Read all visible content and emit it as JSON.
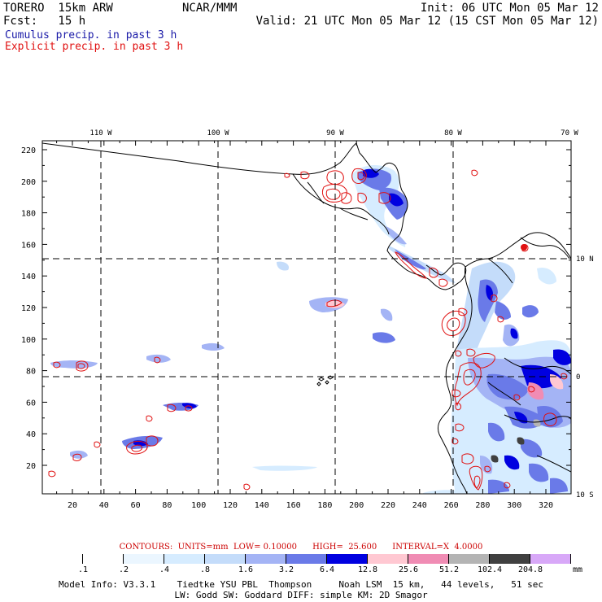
{
  "header": {
    "left_line1": "TORERO  15km ARW",
    "center_line1": "NCAR/MMM",
    "right_line1": "Init: 06 UTC Mon 05 Mar 12",
    "left_line2": "Fcst:   15 h",
    "right_line2": "Valid: 21 UTC Mon 05 Mar 12 (15 CST Mon 05 Mar 12)",
    "legend_blue": "Cumulus precip. in past 3 h",
    "legend_red": "Explicit precip. in past 3 h"
  },
  "map": {
    "top_lon_labels": [
      "110 W",
      "100 W",
      "90 W",
      "80 W",
      "70 W"
    ],
    "right_lat_labels": [
      "10 N",
      "0",
      "10 S"
    ],
    "y_ticks": [
      "20",
      "40",
      "60",
      "80",
      "100",
      "120",
      "140",
      "160",
      "180",
      "200",
      "220"
    ],
    "x_ticks": [
      "20",
      "40",
      "60",
      "80",
      "100",
      "120",
      "140",
      "160",
      "180",
      "200",
      "220",
      "240",
      "260",
      "280",
      "300",
      "320"
    ],
    "colors": {
      "cumulus": "#1a1aa8",
      "explicit": "#e01010",
      "coast": "#000000"
    }
  },
  "contours": {
    "label": "CONTOURS:  UNITS=mm  LOW= 0.10000      HIGH=  25.600      INTERVAL=X  4.0000"
  },
  "colorbar": {
    "labels": [
      ".1",
      ".2",
      ".4",
      ".8",
      "1.6",
      "3.2",
      "6.4",
      "12.8",
      "25.6",
      "51.2",
      "102.4",
      "204.8"
    ],
    "unit": "mm",
    "colors": [
      "#ffffff",
      "#ffffff",
      "#ebf6ff",
      "#d6ecff",
      "#c4dcfa",
      "#a4b4f5",
      "#6a7ae8",
      "#0000e0",
      "#ffc8d2",
      "#f08cb4",
      "#b4b4b4",
      "#404040",
      "#d8a8f8"
    ]
  },
  "footer": {
    "line1": "Model Info: V3.3.1    Tiedtke YSU PBL  Thompson     Noah LSM  15 km,   44 levels,   51 sec",
    "line2": "LW: Godd SW: Goddard DIFF: simple KM: 2D Smagor"
  }
}
